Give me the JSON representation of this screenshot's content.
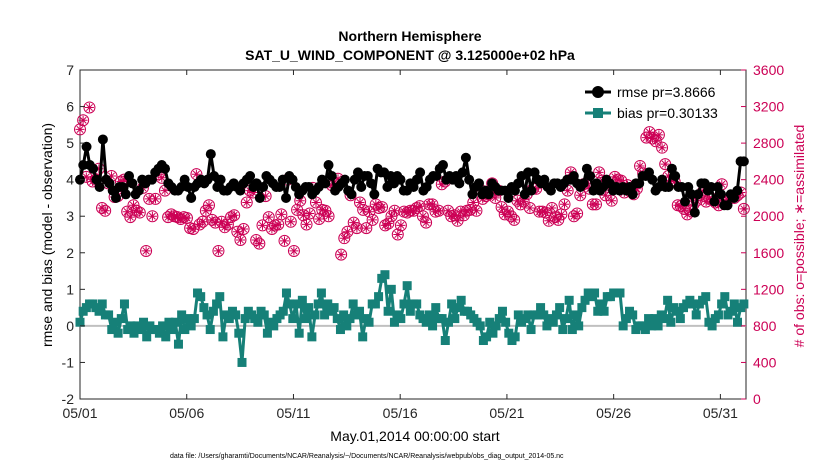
{
  "colors": {
    "rmse": "#000000",
    "bias": "#168078",
    "obs": "#cc0055",
    "zero": "#c0c0c0"
  },
  "chart_data": {
    "type": "line",
    "title": "Northern Hemisphere",
    "subtitle": "SAT_U_WIND_COMPONENT @ 3.125000e+02 hPa",
    "xlabel": "May.01,2014 00:00:00 start",
    "ylabel": "rmse and bias (model - observation)",
    "ylabel_right": "# of obs: o=possible; ∗=assimilated",
    "footnote": "data file: /Users/gharamti/Documents/NCAR/Reanalysis/~/Documents/NCAR/Reanalysis/webpub/obs_diag_output_2014-05.nc",
    "x_tick_labels": [
      "05/01",
      "05/06",
      "05/11",
      "05/16",
      "05/21",
      "05/26",
      "05/31"
    ],
    "x_tick_days": [
      1,
      6,
      11,
      16,
      21,
      26,
      31
    ],
    "xlim": [
      1,
      32.2
    ],
    "ylim": [
      -2,
      7
    ],
    "y_ticks": [
      -2,
      -1,
      0,
      1,
      2,
      3,
      4,
      5,
      6,
      7
    ],
    "ylim_right": [
      0,
      3600
    ],
    "y_ticks_right": [
      0,
      400,
      800,
      1200,
      1600,
      2000,
      2400,
      2800,
      3200,
      3600
    ],
    "legend_position": "top-right",
    "series": [
      {
        "name": "rmse pr=3.8666",
        "marker": "circle",
        "axis": "left",
        "values": [
          4.0,
          4.4,
          4.9,
          4.4,
          4.3,
          4.0,
          3.8,
          5.1,
          4.0,
          3.9,
          3.7,
          3.5,
          3.8,
          3.8,
          3.6,
          4.1,
          3.9,
          3.6,
          3.7,
          4.0,
          3.9,
          4.0,
          4.0,
          4.2,
          4.3,
          4.4,
          4.3,
          3.9,
          3.8,
          3.7,
          3.7,
          3.8,
          4.0,
          3.8,
          3.5,
          3.8,
          3.9,
          4.0,
          3.9,
          4.0,
          4.7,
          4.1,
          3.8,
          4.0,
          3.7,
          3.7,
          3.8,
          3.9,
          3.8,
          3.7,
          3.9,
          4.0,
          4.1,
          3.8,
          3.9,
          3.5,
          3.8,
          4.1,
          4.0,
          3.9,
          3.8,
          3.8,
          4.0,
          3.5,
          4.1,
          4.0,
          3.8,
          3.6,
          3.7,
          3.8,
          3.8,
          3.6,
          3.7,
          3.8,
          4.0,
          3.9,
          4.4,
          4.1,
          3.7,
          3.8,
          3.9,
          4.0,
          3.7,
          3.6,
          4.0,
          4.2,
          3.8,
          4.1,
          4.1,
          3.9,
          3.6,
          4.3,
          4.2,
          4.2,
          3.8,
          4.1,
          3.9,
          4.1,
          4.0,
          3.7,
          3.7,
          3.9,
          3.8,
          4.0,
          4.2,
          3.7,
          3.8,
          4.0,
          4.1,
          4.1,
          4.3,
          4.4,
          4.0,
          4.1,
          4.0,
          4.1,
          3.9,
          4.2,
          4.6,
          4.0,
          3.6,
          3.8,
          3.9,
          3.6,
          3.7,
          3.6,
          3.9,
          3.8,
          3.7,
          3.7,
          3.7,
          3.5,
          3.8,
          3.7,
          3.9,
          4.1,
          3.6,
          4.2,
          3.7,
          4.2,
          4.0,
          3.9,
          4.0,
          3.8,
          3.7,
          3.9,
          3.9,
          3.8,
          3.9,
          4.0,
          4.0,
          4.1,
          3.9,
          3.8,
          3.9,
          4.3,
          4.1,
          3.7,
          3.9,
          3.7,
          3.8,
          4.0,
          3.9,
          3.7,
          3.8,
          3.7,
          3.8,
          3.7,
          3.8,
          3.6,
          3.9,
          3.9,
          4.1,
          4.1,
          4.2,
          4.0,
          3.7,
          3.8,
          4.0,
          3.8,
          3.8,
          4.3,
          4.1,
          3.8,
          3.8,
          3.4,
          3.8,
          3.6,
          3.1,
          3.6,
          3.9,
          3.9,
          3.7,
          3.8,
          3.4,
          3.8,
          3.6,
          3.3,
          3.3,
          3.6,
          3.5,
          3.7,
          4.5,
          4.5
        ]
      },
      {
        "name": "bias pr=0.30133",
        "marker": "square",
        "axis": "left",
        "values": [
          0.1,
          0.4,
          0.5,
          0.6,
          0.6,
          0.5,
          0.4,
          0.6,
          0.3,
          0.3,
          -0.1,
          0.1,
          -0.2,
          0.2,
          0.6,
          -0.1,
          0.0,
          -0.2,
          0.0,
          -0.1,
          0.1,
          -0.3,
          0.0,
          -0.1,
          -0.1,
          -0.2,
          0.0,
          -0.3,
          0.1,
          -0.1,
          0.1,
          -0.5,
          0.3,
          -0.1,
          0.2,
          0.0,
          0.2,
          0.9,
          0.8,
          0.5,
          0.3,
          -0.1,
          0.4,
          0.6,
          0.8,
          -0.3,
          0.3,
          0.2,
          0.4,
          0.3,
          -0.2,
          -1.0,
          0.2,
          0.4,
          0.3,
          0.2,
          0.1,
          0.4,
          0.3,
          -0.2,
          0.1,
          0.0,
          0.2,
          0.3,
          0.4,
          0.9,
          0.6,
          0.2,
          0.6,
          -0.2,
          0.7,
          0.2,
          0.5,
          -0.3,
          0.3,
          0.6,
          0.9,
          0.3,
          0.6,
          0.4,
          0.5,
          0.2,
          -0.1,
          0.3,
          0.0,
          0.2,
          0.6,
          0.3,
          0.4,
          -0.3,
          0.2,
          0.1,
          0.6,
          0.6,
          0.8,
          1.3,
          1.4,
          0.4,
          1.0,
          0.1,
          0.3,
          0.2,
          0.6,
          1.1,
          0.4,
          0.6,
          0.6,
          0.3,
          0.2,
          0.1,
          0.3,
          0.0,
          0.5,
          0.2,
          0.2,
          -0.4,
          0.1,
          0.6,
          0.2,
          0.5,
          0.7,
          0.4,
          0.4,
          0.3,
          0.2,
          0.1,
          0.0,
          -0.4,
          -0.3,
          0.1,
          -0.2,
          0.0,
          0.2,
          0.4,
          0.1,
          -0.2,
          -0.4,
          -0.3,
          0.3,
          0.1,
          0.2,
          0.3,
          -0.1,
          0.3,
          0.3,
          0.5,
          0.3,
          0.0,
          0.2,
          0.1,
          0.3,
          0.5,
          -0.1,
          0.2,
          0.7,
          -0.1,
          0.3,
          0.0,
          0.5,
          0.7,
          0.9,
          0.8,
          0.9,
          0.4,
          0.6,
          0.4,
          0.8,
          0.8,
          0.9,
          0.9,
          0.9,
          0.0,
          0.2,
          0.4,
          0.3,
          -0.1,
          0.0,
          0.0,
          -0.1,
          0.2,
          0.0,
          0.2,
          0.0,
          0.3,
          0.2,
          0.7,
          0.1,
          0.5,
          0.4,
          0.2,
          0.5,
          0.6,
          0.7,
          0.6,
          0.3,
          0.6,
          0.7,
          0.8,
          0.1,
          0.0,
          0.2,
          0.3,
          0.6,
          0.8,
          0.3,
          0.4,
          0.6,
          0.1,
          0.5,
          0.6
        ]
      },
      {
        "name": "possible",
        "marker": "circle-open",
        "axis": "right",
        "values": [
          2950,
          3050,
          2430,
          3190,
          2380,
          2400,
          2520,
          2090,
          2060,
          2360,
          2440,
          2210,
          2220,
          2380,
          2400,
          2050,
          1990,
          2120,
          2060,
          2040,
          2310,
          1620,
          2190,
          2000,
          2190,
          2460,
          2420,
          2280,
          1990,
          2020,
          2000,
          1990,
          1970,
          1990,
          1980,
          1870,
          1860,
          2460,
          1910,
          1940,
          2060,
          2120,
          1960,
          1930,
          1620,
          1940,
          1880,
          1910,
          1990,
          2010,
          1830,
          1740,
          1860,
          2150,
          2280,
          2260,
          1740,
          1700,
          1900,
          2220,
          1990,
          1860,
          1900,
          1910,
          2020,
          1730,
          2400,
          1940,
          1620,
          2070,
          2170,
          2010,
          1910,
          2030,
          2310,
          2150,
          1970,
          2070,
          2060,
          2000,
          2340,
          2350,
          2410,
          1580,
          1760,
          1830,
          2230,
          1930,
          1870,
          2150,
          2070,
          1870,
          2050,
          1960,
          2130,
          2090,
          2100,
          1900,
          1920,
          2000,
          2060,
          1800,
          1900,
          2050,
          2040,
          2060,
          2060,
          2090,
          2110,
          2000,
          1930,
          2130,
          2130,
          2050,
          2060,
          2350,
          2380,
          2060,
          2000,
          2010,
          1950,
          2050,
          2010,
          2060,
          2070,
          2150,
          2060,
          2300,
          2190,
          2220,
          2240,
          2360,
          2200,
          2280,
          2100,
          2020,
          2050,
          2000,
          1960,
          2170,
          2130,
          2160,
          2240,
          2090,
          2300,
          2300,
          2050,
          2050,
          2040,
          1950,
          2090,
          1990,
          1960,
          2020,
          2130,
          2280,
          2480,
          2000,
          2030,
          2230,
          2350,
          2360,
          2300,
          2130,
          2130,
          2480,
          2390,
          2230,
          2320,
          2170,
          2430,
          2400,
          2390,
          2260,
          2340,
          2270,
          2240,
          2300,
          2550,
          2470,
          2860,
          2920,
          2850,
          2820,
          2890,
          2750,
          2570,
          2440,
          2390,
          2380,
          2120,
          2110,
          2080,
          2020,
          2060,
          2130,
          2170,
          2230,
          2270,
          2160,
          2190,
          2190,
          2150,
          2120,
          2350,
          2170,
          2180,
          2220,
          2200,
          2230,
          2260,
          2080
        ]
      },
      {
        "name": "assimilated",
        "marker": "asterisk",
        "axis": "right",
        "values": [
          2950,
          3050,
          2430,
          3190,
          2380,
          2400,
          2520,
          2090,
          2060,
          2360,
          2440,
          2210,
          2220,
          2380,
          2400,
          2050,
          1990,
          2120,
          2060,
          2040,
          2310,
          1620,
          2190,
          2000,
          2190,
          2460,
          2420,
          2280,
          1990,
          2020,
          2000,
          1990,
          1970,
          1990,
          1980,
          1870,
          1860,
          2460,
          1910,
          1940,
          2060,
          2120,
          1960,
          1930,
          1620,
          1940,
          1880,
          1910,
          1990,
          2010,
          1830,
          1740,
          1860,
          2150,
          2280,
          2260,
          1740,
          1700,
          1900,
          2220,
          1990,
          1860,
          1900,
          1910,
          2020,
          1730,
          2400,
          1940,
          1620,
          2070,
          2170,
          2010,
          1910,
          2030,
          2310,
          2150,
          1970,
          2070,
          2060,
          2000,
          2340,
          2350,
          2410,
          1580,
          1760,
          1830,
          2230,
          1930,
          1870,
          2150,
          2070,
          1870,
          2050,
          1960,
          2130,
          2090,
          2100,
          1900,
          1920,
          2000,
          2060,
          1800,
          1900,
          2050,
          2040,
          2060,
          2060,
          2090,
          2110,
          2000,
          1930,
          2130,
          2130,
          2050,
          2060,
          2350,
          2380,
          2060,
          2000,
          2010,
          1950,
          2050,
          2010,
          2060,
          2070,
          2150,
          2060,
          2300,
          2190,
          2220,
          2240,
          2360,
          2200,
          2280,
          2100,
          2020,
          2050,
          2000,
          1960,
          2170,
          2130,
          2160,
          2240,
          2090,
          2300,
          2300,
          2050,
          2050,
          2040,
          1950,
          2090,
          1990,
          1960,
          2020,
          2130,
          2280,
          2480,
          2000,
          2030,
          2230,
          2350,
          2360,
          2300,
          2130,
          2130,
          2480,
          2390,
          2230,
          2320,
          2170,
          2430,
          2400,
          2390,
          2260,
          2340,
          2270,
          2240,
          2300,
          2550,
          2470,
          2860,
          2920,
          2850,
          2820,
          2890,
          2750,
          2570,
          2440,
          2390,
          2380,
          2120,
          2110,
          2080,
          2020,
          2060,
          2130,
          2170,
          2230,
          2270,
          2160,
          2190,
          2190,
          2150,
          2120,
          2350,
          2170,
          2180,
          2220,
          2200,
          2230,
          2260,
          2080
        ]
      }
    ]
  }
}
